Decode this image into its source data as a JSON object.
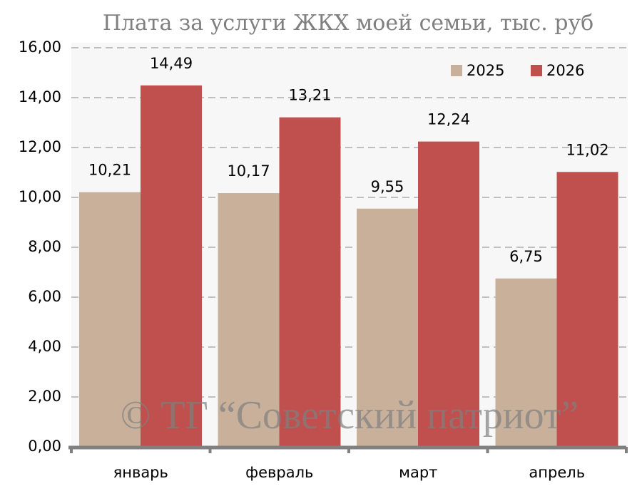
{
  "chart_data": {
    "type": "bar",
    "title": "Плата за услуги ЖКХ моей семьи, тыс. руб",
    "watermark": "© ТГ “Советский патриот”",
    "categories": [
      "январь",
      "февраль",
      "март",
      "апрель"
    ],
    "series": [
      {
        "name": "2025",
        "color": "#c8b09a",
        "values": [
          10.21,
          10.17,
          9.55,
          6.75
        ],
        "value_labels": [
          "10,21",
          "10,17",
          "9,55",
          "6,75"
        ]
      },
      {
        "name": "2026",
        "color": "#c0504d",
        "values": [
          14.49,
          13.21,
          12.24,
          11.02
        ],
        "value_labels": [
          "14,49",
          "13,21",
          "12,24",
          "11,02"
        ]
      }
    ],
    "ylim": [
      0,
      16
    ],
    "yticks": [
      {
        "value": 0,
        "label": "0,00"
      },
      {
        "value": 2,
        "label": "2,00"
      },
      {
        "value": 4,
        "label": "4,00"
      },
      {
        "value": 6,
        "label": "6,00"
      },
      {
        "value": 8,
        "label": "8,00"
      },
      {
        "value": 10,
        "label": "10,00"
      },
      {
        "value": 12,
        "label": "12,00"
      },
      {
        "value": 14,
        "label": "14,00"
      },
      {
        "value": 16,
        "label": "16,00"
      }
    ],
    "grid": true,
    "legend": "top-right"
  }
}
